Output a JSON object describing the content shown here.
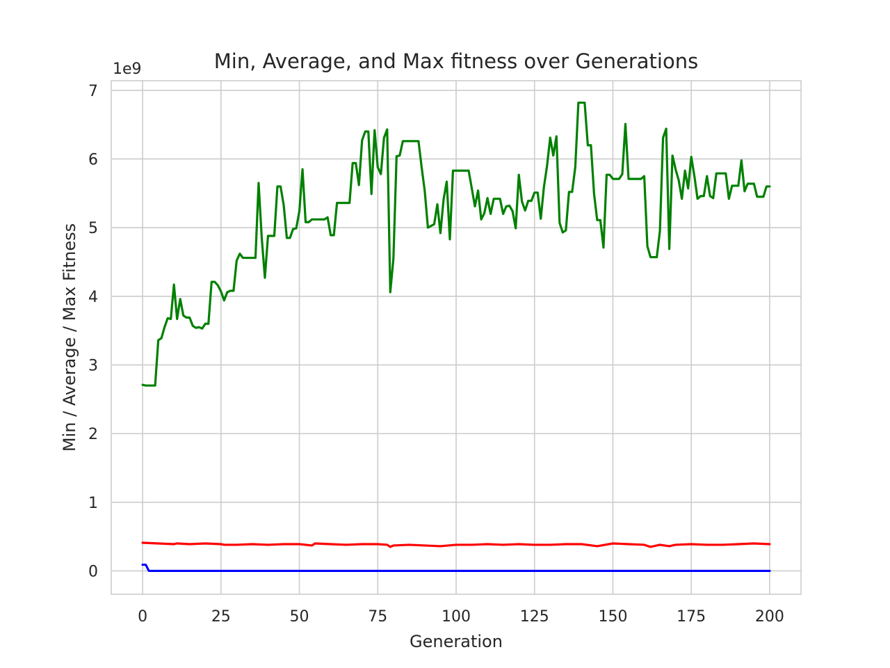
{
  "chart_data": {
    "type": "line",
    "title": "Min, Average, and Max fitness over Generations",
    "xlabel": "Generation",
    "ylabel": "Min / Average / Max Fitness",
    "y_offset_label": "1e9",
    "y_scale_factor": 1000000000,
    "xlim": [
      -10,
      210
    ],
    "ylim": [
      -0.34,
      7.14
    ],
    "x_ticks": [
      0,
      25,
      50,
      75,
      100,
      125,
      150,
      175,
      200
    ],
    "x_tick_labels": [
      "0",
      "25",
      "50",
      "75",
      "100",
      "125",
      "150",
      "175",
      "200"
    ],
    "y_ticks": [
      0,
      1,
      2,
      3,
      4,
      5,
      6,
      7
    ],
    "y_tick_labels": [
      "0",
      "1",
      "2",
      "3",
      "4",
      "5",
      "6",
      "7"
    ],
    "grid": true,
    "legend": "none",
    "series": [
      {
        "role": "max",
        "color": "#008000",
        "points": [
          [
            0,
            2.71
          ],
          [
            1,
            2.7
          ],
          [
            4,
            2.7
          ],
          [
            5,
            3.36
          ],
          [
            6,
            3.39
          ],
          [
            7,
            3.55
          ],
          [
            8,
            3.68
          ],
          [
            9,
            3.67
          ],
          [
            10,
            4.17
          ],
          [
            11,
            3.67
          ],
          [
            12,
            3.96
          ],
          [
            13,
            3.72
          ],
          [
            14,
            3.69
          ],
          [
            15,
            3.69
          ],
          [
            16,
            3.57
          ],
          [
            17,
            3.54
          ],
          [
            18,
            3.55
          ],
          [
            19,
            3.53
          ],
          [
            20,
            3.6
          ],
          [
            21,
            3.6
          ],
          [
            22,
            4.21
          ],
          [
            23,
            4.21
          ],
          [
            24,
            4.16
          ],
          [
            25,
            4.07
          ],
          [
            26,
            3.94
          ],
          [
            27,
            4.06
          ],
          [
            28,
            4.08
          ],
          [
            29,
            4.08
          ],
          [
            30,
            4.52
          ],
          [
            31,
            4.62
          ],
          [
            32,
            4.56
          ],
          [
            36,
            4.56
          ],
          [
            37,
            5.65
          ],
          [
            38,
            4.85
          ],
          [
            39,
            4.27
          ],
          [
            40,
            4.88
          ],
          [
            42,
            4.88
          ],
          [
            43,
            5.6
          ],
          [
            44,
            5.6
          ],
          [
            45,
            5.33
          ],
          [
            46,
            4.85
          ],
          [
            47,
            4.85
          ],
          [
            48,
            4.98
          ],
          [
            49,
            4.99
          ],
          [
            50,
            5.24
          ],
          [
            51,
            5.85
          ],
          [
            52,
            5.08
          ],
          [
            53,
            5.08
          ],
          [
            54,
            5.12
          ],
          [
            58,
            5.12
          ],
          [
            59,
            5.15
          ],
          [
            60,
            4.89
          ],
          [
            61,
            4.89
          ],
          [
            62,
            5.36
          ],
          [
            66,
            5.36
          ],
          [
            67,
            5.94
          ],
          [
            68,
            5.94
          ],
          [
            69,
            5.62
          ],
          [
            70,
            6.27
          ],
          [
            71,
            6.4
          ],
          [
            72,
            6.4
          ],
          [
            73,
            5.49
          ],
          [
            74,
            6.42
          ],
          [
            75,
            5.88
          ],
          [
            76,
            5.78
          ],
          [
            77,
            6.31
          ],
          [
            78,
            6.43
          ],
          [
            79,
            4.06
          ],
          [
            80,
            4.55
          ],
          [
            81,
            6.04
          ],
          [
            82,
            6.05
          ],
          [
            83,
            6.26
          ],
          [
            88,
            6.26
          ],
          [
            89,
            5.88
          ],
          [
            90,
            5.53
          ],
          [
            91,
            5.0
          ],
          [
            93,
            5.05
          ],
          [
            94,
            5.34
          ],
          [
            95,
            4.92
          ],
          [
            96,
            5.41
          ],
          [
            97,
            5.67
          ],
          [
            98,
            4.83
          ],
          [
            99,
            5.83
          ],
          [
            104,
            5.83
          ],
          [
            105,
            5.57
          ],
          [
            106,
            5.31
          ],
          [
            107,
            5.54
          ],
          [
            108,
            5.12
          ],
          [
            109,
            5.21
          ],
          [
            110,
            5.43
          ],
          [
            111,
            5.2
          ],
          [
            112,
            5.42
          ],
          [
            114,
            5.42
          ],
          [
            115,
            5.2
          ],
          [
            116,
            5.31
          ],
          [
            117,
            5.32
          ],
          [
            118,
            5.24
          ],
          [
            119,
            4.99
          ],
          [
            120,
            5.77
          ],
          [
            121,
            5.38
          ],
          [
            122,
            5.25
          ],
          [
            123,
            5.39
          ],
          [
            124,
            5.39
          ],
          [
            125,
            5.51
          ],
          [
            126,
            5.51
          ],
          [
            127,
            5.13
          ],
          [
            128,
            5.59
          ],
          [
            129,
            5.9
          ],
          [
            130,
            6.31
          ],
          [
            131,
            6.05
          ],
          [
            132,
            6.33
          ],
          [
            133,
            5.07
          ],
          [
            134,
            4.93
          ],
          [
            135,
            4.96
          ],
          [
            136,
            5.52
          ],
          [
            137,
            5.52
          ],
          [
            138,
            5.88
          ],
          [
            139,
            6.82
          ],
          [
            141,
            6.82
          ],
          [
            142,
            6.2
          ],
          [
            143,
            6.2
          ],
          [
            144,
            5.49
          ],
          [
            145,
            5.11
          ],
          [
            146,
            5.11
          ],
          [
            147,
            4.71
          ],
          [
            148,
            5.77
          ],
          [
            149,
            5.77
          ],
          [
            150,
            5.71
          ],
          [
            152,
            5.71
          ],
          [
            153,
            5.78
          ],
          [
            154,
            6.51
          ],
          [
            155,
            5.71
          ],
          [
            159,
            5.71
          ],
          [
            160,
            5.75
          ],
          [
            161,
            4.73
          ],
          [
            162,
            4.57
          ],
          [
            164,
            4.57
          ],
          [
            165,
            4.95
          ],
          [
            166,
            6.31
          ],
          [
            167,
            6.44
          ],
          [
            168,
            4.69
          ],
          [
            169,
            6.05
          ],
          [
            170,
            5.85
          ],
          [
            171,
            5.69
          ],
          [
            172,
            5.42
          ],
          [
            173,
            5.83
          ],
          [
            174,
            5.57
          ],
          [
            175,
            6.03
          ],
          [
            176,
            5.75
          ],
          [
            177,
            5.42
          ],
          [
            178,
            5.46
          ],
          [
            179,
            5.46
          ],
          [
            180,
            5.75
          ],
          [
            181,
            5.46
          ],
          [
            182,
            5.43
          ],
          [
            183,
            5.79
          ],
          [
            186,
            5.79
          ],
          [
            187,
            5.42
          ],
          [
            188,
            5.61
          ],
          [
            190,
            5.61
          ],
          [
            191,
            5.98
          ],
          [
            192,
            5.53
          ],
          [
            193,
            5.64
          ],
          [
            195,
            5.64
          ],
          [
            196,
            5.45
          ],
          [
            198,
            5.45
          ],
          [
            199,
            5.6
          ],
          [
            200,
            5.6
          ]
        ]
      },
      {
        "role": "average",
        "color": "#ff0000",
        "points": [
          [
            0,
            0.41
          ],
          [
            5,
            0.4
          ],
          [
            10,
            0.39
          ],
          [
            11,
            0.4
          ],
          [
            15,
            0.39
          ],
          [
            20,
            0.4
          ],
          [
            25,
            0.39
          ],
          [
            26,
            0.38
          ],
          [
            30,
            0.38
          ],
          [
            35,
            0.39
          ],
          [
            40,
            0.38
          ],
          [
            45,
            0.39
          ],
          [
            50,
            0.39
          ],
          [
            54,
            0.37
          ],
          [
            55,
            0.4
          ],
          [
            60,
            0.39
          ],
          [
            65,
            0.38
          ],
          [
            70,
            0.39
          ],
          [
            75,
            0.39
          ],
          [
            78,
            0.38
          ],
          [
            79,
            0.35
          ],
          [
            80,
            0.37
          ],
          [
            85,
            0.38
          ],
          [
            90,
            0.37
          ],
          [
            95,
            0.36
          ],
          [
            100,
            0.38
          ],
          [
            105,
            0.38
          ],
          [
            110,
            0.39
          ],
          [
            115,
            0.38
          ],
          [
            120,
            0.39
          ],
          [
            125,
            0.38
          ],
          [
            130,
            0.38
          ],
          [
            135,
            0.39
          ],
          [
            140,
            0.39
          ],
          [
            145,
            0.36
          ],
          [
            150,
            0.4
          ],
          [
            155,
            0.39
          ],
          [
            160,
            0.38
          ],
          [
            162,
            0.35
          ],
          [
            165,
            0.38
          ],
          [
            168,
            0.36
          ],
          [
            170,
            0.38
          ],
          [
            175,
            0.39
          ],
          [
            180,
            0.38
          ],
          [
            185,
            0.38
          ],
          [
            190,
            0.39
          ],
          [
            195,
            0.4
          ],
          [
            200,
            0.39
          ]
        ]
      },
      {
        "role": "min",
        "color": "#0000ff",
        "points": [
          [
            0,
            0.09
          ],
          [
            1,
            0.09
          ],
          [
            2,
            0.0
          ],
          [
            200,
            0.0
          ]
        ]
      }
    ]
  }
}
